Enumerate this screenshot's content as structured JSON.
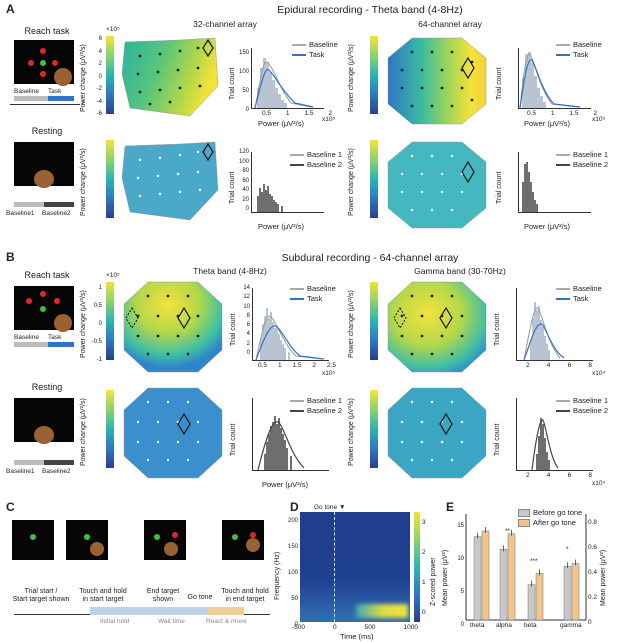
{
  "panel_a": {
    "letter": "A",
    "title": "Epidural recording - Theta band (4-8Hz)",
    "array32": "32-channel array",
    "array64": "64-channel array",
    "reach_task": "Reach task",
    "resting": "Resting",
    "baseline": "Baseline",
    "task": "Task",
    "baseline1": "Baseline1",
    "baseline2": "Baseline2",
    "legend_baseline": "Baseline",
    "legend_task": "Task",
    "legend_b1": "Baseline 1",
    "legend_b2": "Baseline 2",
    "cbar_label": "Power change (μV²/s)",
    "cbar_exp": "×10⁵",
    "cbar_ticks": [
      "6",
      "4",
      "2",
      "0",
      "-2",
      "-4",
      "-6"
    ],
    "hist_ylabel": "Trial count",
    "hist_xlabel": "Power (μV²/s)",
    "hist_exp": "x10⁵",
    "hist_xticks_32": [
      "0.5",
      "1",
      "1.5",
      "2"
    ],
    "hist_xticks_64": [
      "0.5",
      "1",
      "1.5",
      "2"
    ],
    "hist_yticks_top32": [
      "150",
      "100",
      "50",
      "0"
    ],
    "hist_yticks_bot32": [
      "120",
      "100",
      "80",
      "60",
      "40",
      "20",
      "0"
    ],
    "hist_yticks_top64": [
      "150",
      "100",
      "50",
      "0"
    ]
  },
  "panel_b": {
    "letter": "B",
    "title": "Subdural recording - 64-channel array",
    "theta": "Theta band (4-8Hz)",
    "gamma": "Gamma band (30-70Hz)",
    "reach_task": "Reach task",
    "resting": "Resting",
    "baseline": "Baseline",
    "task": "Task",
    "baseline1": "Baseline1",
    "baseline2": "Baseline2",
    "legend_baseline": "Baseline",
    "legend_task": "Task",
    "legend_b1": "Baseline 1",
    "legend_b2": "Baseline 2",
    "cbar_label": "Power change (μV²/s)",
    "cbar_exp": "×10⁵",
    "cbar_ticks": [
      "1",
      "0.5",
      "0",
      "-0.5",
      "-1"
    ],
    "hist_ylabel": "Trial count",
    "hist_xlabel": "Power (μV²/s)",
    "theta_xticks": [
      "0.5",
      "1",
      "1.5",
      "2",
      "2.5"
    ],
    "theta_exp": "x10⁵",
    "gamma_xticks": [
      "2",
      "4",
      "6",
      "8"
    ],
    "gamma_exp": "x10⁴",
    "theta_yticks": [
      "14",
      "12",
      "10",
      "8",
      "6",
      "4",
      "2",
      "0"
    ],
    "gamma_yticks": [
      "40",
      "30",
      "20",
      "10",
      "0"
    ]
  },
  "panel_c": {
    "letter": "C",
    "labels": [
      "Trial start /\nStart target shown",
      "Touch and hold\nin start target",
      "End target\nshown",
      "Go tone",
      "Touch and hold\nin end target"
    ],
    "phases": [
      "Initial hold",
      "Wait time",
      "React & move"
    ]
  },
  "panel_d": {
    "letter": "D",
    "marker": "Go tone",
    "ylabel": "Frequency (Hz)",
    "xlabel": "Time (ms)",
    "cbar_label": "Z-scored power",
    "yticks": [
      "200",
      "150",
      "100",
      "50",
      "0"
    ],
    "xticks": [
      "-500",
      "0",
      "500",
      "1000"
    ],
    "cticks": [
      "3",
      "2",
      "1",
      "0"
    ]
  },
  "panel_e": {
    "letter": "E",
    "ylabel_left": "Mean power (μV²)",
    "ylabel_right": "Mean power (μV²)",
    "legend_before": "Before go tone",
    "legend_after": "After go tone",
    "color_before": "#c8c8c8",
    "color_after": "#f0c48a",
    "left_ticks": [
      "15",
      "10",
      "5",
      "0"
    ],
    "right_ticks": [
      "0.8",
      "0.6",
      "0.4",
      "0.2",
      "0"
    ],
    "significance": [
      "**",
      "***",
      "*"
    ],
    "chart_data": {
      "type": "bar",
      "categories": [
        "theta",
        "alpha",
        "beta",
        "gamma"
      ],
      "series": [
        {
          "name": "Before go tone",
          "values": [
            11.8,
            10.0,
            5.0,
            7.6
          ]
        },
        {
          "name": "After go tone",
          "values": [
            12.6,
            12.2,
            6.6,
            8.0
          ]
        }
      ],
      "ylim": [
        0,
        15
      ]
    }
  }
}
